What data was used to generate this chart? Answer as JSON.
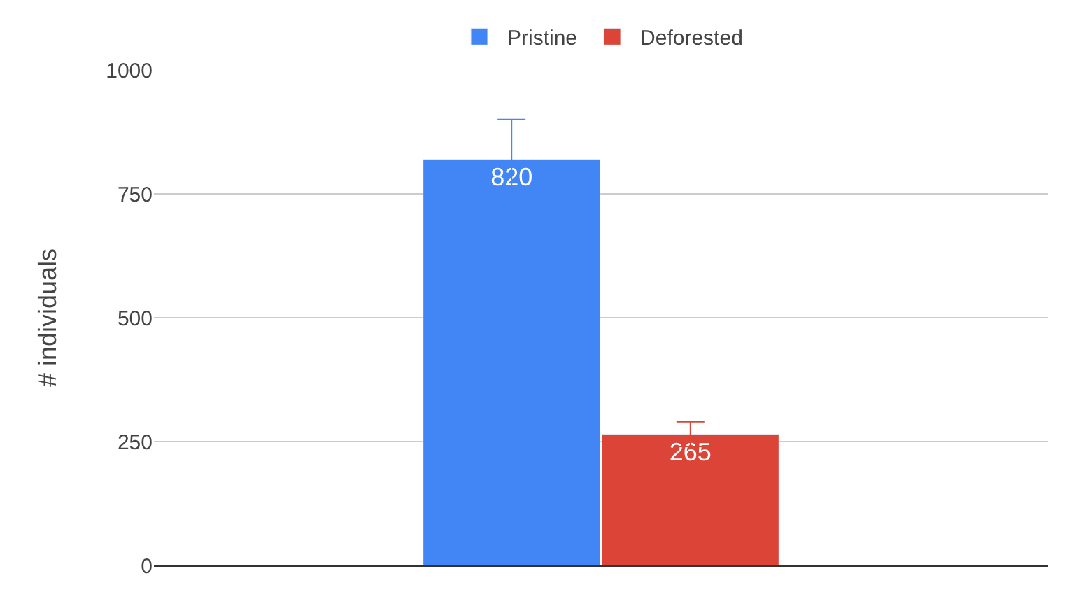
{
  "chart_data": {
    "type": "bar",
    "ylabel": "# individuals",
    "categories": [
      null
    ],
    "series": [
      {
        "name": "Pristine",
        "color": "#4285f4",
        "values": [
          820
        ],
        "errors": [
          80
        ]
      },
      {
        "name": "Deforested",
        "color": "#db4437",
        "values": [
          265
        ],
        "errors": [
          25
        ]
      }
    ],
    "ylim": [
      0,
      1000
    ],
    "yticks": [
      0,
      250,
      500,
      750,
      1000
    ],
    "grid": "y",
    "legend": "top",
    "data_labels": true
  }
}
